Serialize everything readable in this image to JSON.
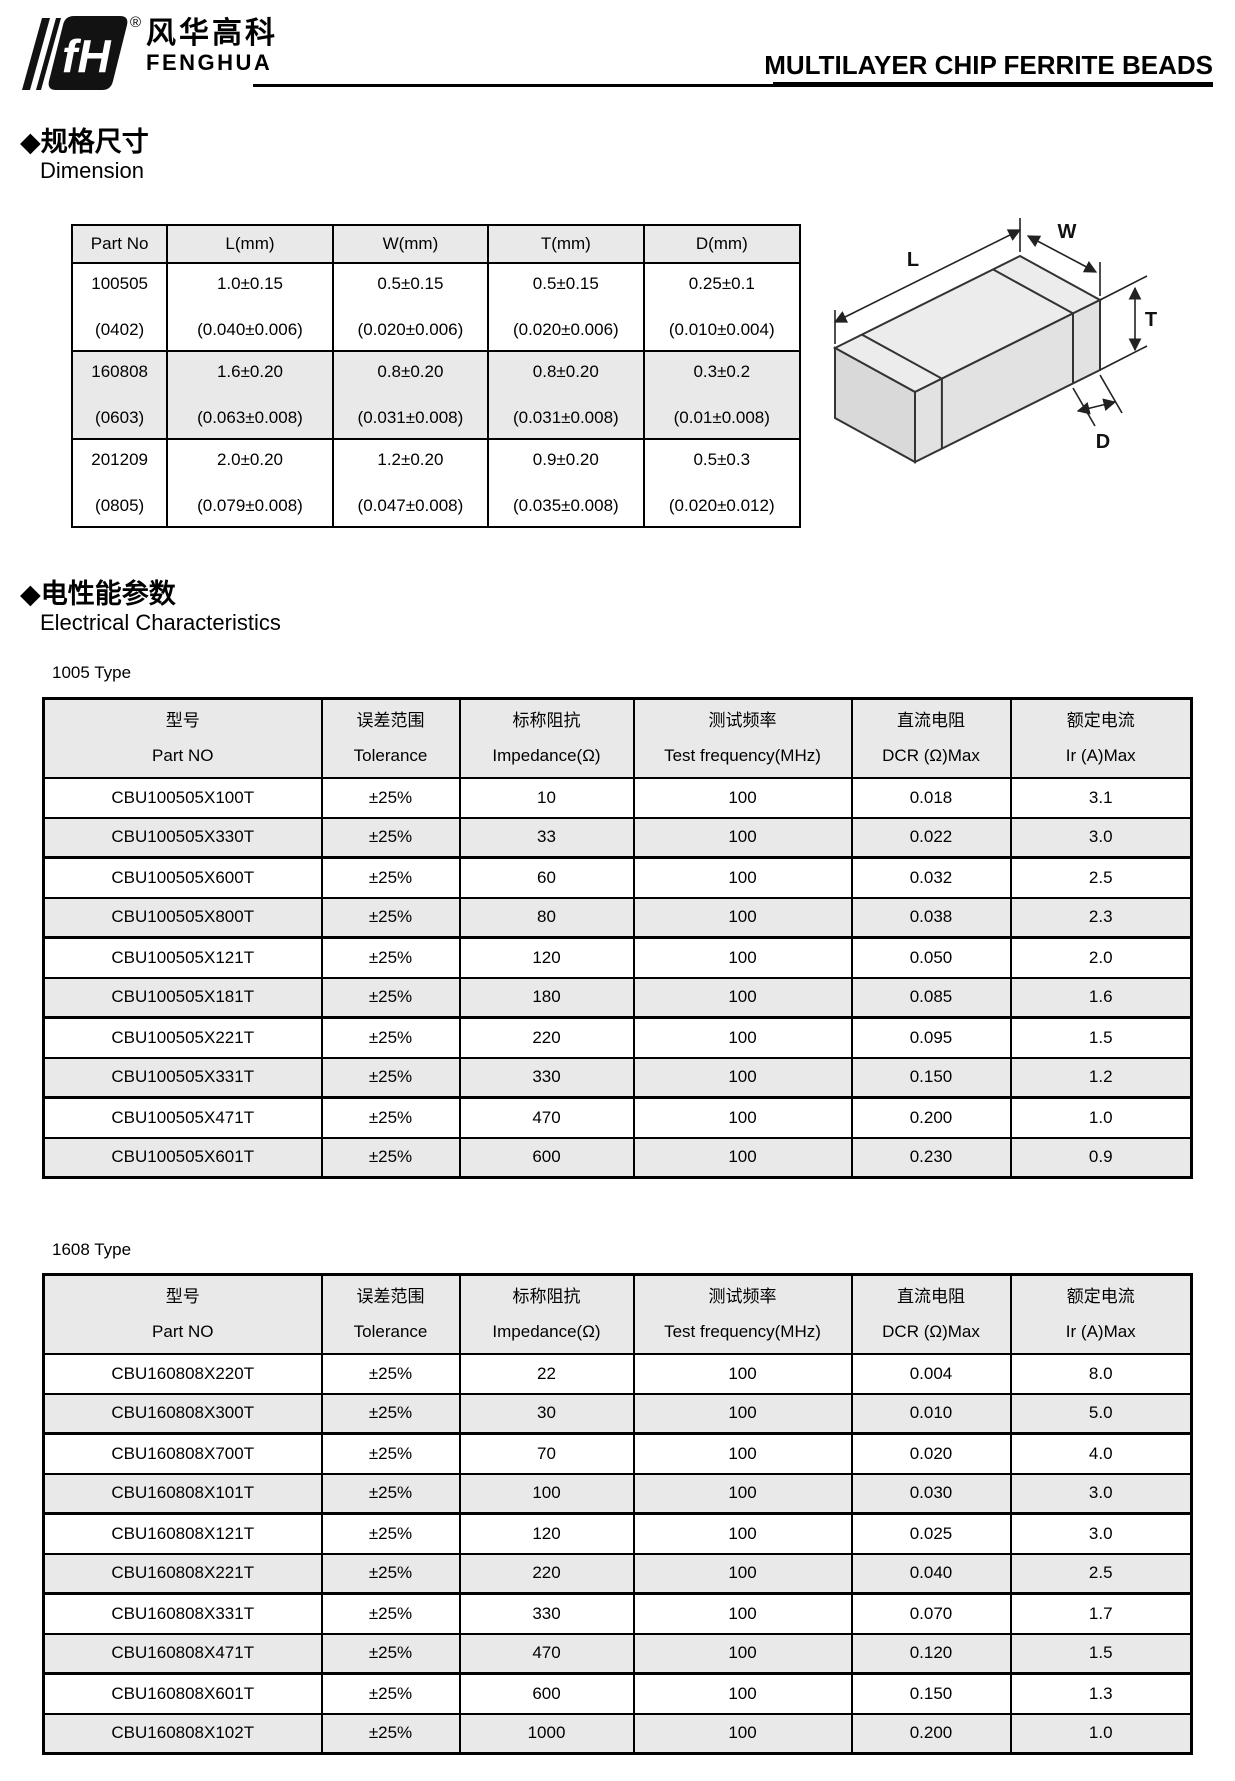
{
  "colors": {
    "table_shading": "#e9e9e9",
    "border": "#000000",
    "text": "#000000"
  },
  "header": {
    "logo_mark": "fH",
    "registered": "®",
    "company_cn": "风华高科",
    "company_en": "FENGHUA",
    "title": "MULTILAYER CHIP FERRITE BEADS"
  },
  "dimension_section": {
    "heading_cn": "◆规格尺寸",
    "heading_en": "Dimension",
    "table": {
      "header_rows": [
        [
          "Part No",
          "L(mm)",
          "W(mm)",
          "T(mm)",
          "D(mm)"
        ]
      ],
      "body_rows": [
        [
          [
            "100505",
            "(0402)"
          ],
          [
            "1.0±0.15",
            "(0.040±0.006)"
          ],
          [
            "0.5±0.15",
            "(0.020±0.006)"
          ],
          [
            "0.5±0.15",
            "(0.020±0.006)"
          ],
          [
            "0.25±0.1",
            "(0.010±0.004)"
          ]
        ],
        [
          [
            "160808",
            "(0603)"
          ],
          [
            "1.6±0.20",
            "(0.063±0.008)"
          ],
          [
            "0.8±0.20",
            "(0.031±0.008)"
          ],
          [
            "0.8±0.20",
            "(0.031±0.008)"
          ],
          [
            "0.3±0.2",
            "(0.01±0.008)"
          ]
        ],
        [
          [
            "201209",
            "(0805)"
          ],
          [
            "2.0±0.20",
            "(0.079±0.008)"
          ],
          [
            "1.2±0.20",
            "(0.047±0.008)"
          ],
          [
            "0.9±0.20",
            "(0.035±0.008)"
          ],
          [
            "0.5±0.3",
            "(0.020±0.012)"
          ]
        ]
      ]
    },
    "drawing": {
      "l": "L",
      "w": "W",
      "t": "T",
      "d": "D"
    }
  },
  "electrical_section": {
    "heading_cn": "◆电性能参数",
    "heading_en": "Electrical Characteristics",
    "tables": [
      {
        "type_label": "1005 Type",
        "header_rows": [
          [
            [
              "型号",
              "Part NO"
            ],
            [
              "误差范围",
              "Tolerance"
            ],
            [
              "标称阻抗",
              "Impedance(Ω)"
            ],
            [
              "测试频率",
              "Test frequency(MHz)"
            ],
            [
              "直流电阻",
              "DCR (Ω)Max"
            ],
            [
              "额定电流",
              "Ir (A)Max"
            ]
          ]
        ],
        "body_rows": [
          [
            "CBU100505X100T",
            "±25%",
            "10",
            "100",
            "0.018",
            "3.1"
          ],
          [
            "CBU100505X330T",
            "±25%",
            "33",
            "100",
            "0.022",
            "3.0"
          ],
          [
            "CBU100505X600T",
            "±25%",
            "60",
            "100",
            "0.032",
            "2.5"
          ],
          [
            "CBU100505X800T",
            "±25%",
            "80",
            "100",
            "0.038",
            "2.3"
          ],
          [
            "CBU100505X121T",
            "±25%",
            "120",
            "100",
            "0.050",
            "2.0"
          ],
          [
            "CBU100505X181T",
            "±25%",
            "180",
            "100",
            "0.085",
            "1.6"
          ],
          [
            "CBU100505X221T",
            "±25%",
            "220",
            "100",
            "0.095",
            "1.5"
          ],
          [
            "CBU100505X331T",
            "±25%",
            "330",
            "100",
            "0.150",
            "1.2"
          ],
          [
            "CBU100505X471T",
            "±25%",
            "470",
            "100",
            "0.200",
            "1.0"
          ],
          [
            "CBU100505X601T",
            "±25%",
            "600",
            "100",
            "0.230",
            "0.9"
          ]
        ]
      },
      {
        "type_label": "1608 Type",
        "header_rows": [
          [
            [
              "型号",
              "Part NO"
            ],
            [
              "误差范围",
              "Tolerance"
            ],
            [
              "标称阻抗",
              "Impedance(Ω)"
            ],
            [
              "测试频率",
              "Test frequency(MHz)"
            ],
            [
              "直流电阻",
              "DCR (Ω)Max"
            ],
            [
              "额定电流",
              "Ir (A)Max"
            ]
          ]
        ],
        "body_rows": [
          [
            "CBU160808X220T",
            "±25%",
            "22",
            "100",
            "0.004",
            "8.0"
          ],
          [
            "CBU160808X300T",
            "±25%",
            "30",
            "100",
            "0.010",
            "5.0"
          ],
          [
            "CBU160808X700T",
            "±25%",
            "70",
            "100",
            "0.020",
            "4.0"
          ],
          [
            "CBU160808X101T",
            "±25%",
            "100",
            "100",
            "0.030",
            "3.0"
          ],
          [
            "CBU160808X121T",
            "±25%",
            "120",
            "100",
            "0.025",
            "3.0"
          ],
          [
            "CBU160808X221T",
            "±25%",
            "220",
            "100",
            "0.040",
            "2.5"
          ],
          [
            "CBU160808X331T",
            "±25%",
            "330",
            "100",
            "0.070",
            "1.7"
          ],
          [
            "CBU160808X471T",
            "±25%",
            "470",
            "100",
            "0.120",
            "1.5"
          ],
          [
            "CBU160808X601T",
            "±25%",
            "600",
            "100",
            "0.150",
            "1.3"
          ],
          [
            "CBU160808X102T",
            "±25%",
            "1000",
            "100",
            "0.200",
            "1.0"
          ]
        ]
      }
    ]
  }
}
